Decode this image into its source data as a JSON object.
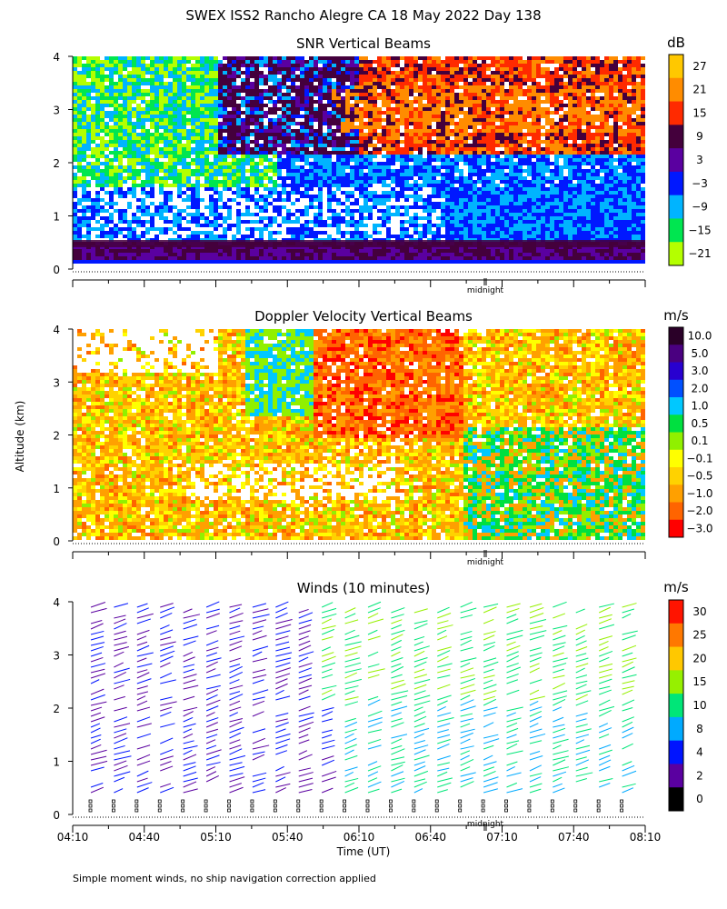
{
  "figure": {
    "title": "SWEX ISS2 Rancho Alegre CA  18 May 2022 Day 138",
    "ylabel": "Altitude (km)",
    "xlabel": "Time (UT)",
    "midnight_label": "midnight",
    "footnote": "Simple moment winds, no ship navigation correction applied"
  },
  "chart_data": [
    {
      "type": "heatmap",
      "title": "SNR Vertical Beams",
      "ylim": [
        0,
        4
      ],
      "yticks": [
        "0",
        "1",
        "2",
        "3",
        "4"
      ],
      "colorbar": {
        "unit": "dB",
        "labels": [
          "27",
          "21",
          "15",
          "9",
          "3",
          "−3",
          "−9",
          "−15",
          "−21"
        ],
        "colors": [
          "#ffc800",
          "#ff8c00",
          "#ff2a00",
          "#44003c",
          "#5a00a0",
          "#0018ff",
          "#00b4ff",
          "#00e650",
          "#b4ff00"
        ]
      }
    },
    {
      "type": "heatmap",
      "title": "Doppler Velocity Vertical Beams",
      "ylim": [
        0,
        4
      ],
      "yticks": [
        "0",
        "1",
        "2",
        "3",
        "4"
      ],
      "colorbar": {
        "unit": "m/s",
        "labels": [
          "10.0",
          "5.0",
          "3.0",
          "2.0",
          "1.0",
          "0.5",
          "0.1",
          "−0.1",
          "−0.5",
          "−1.0",
          "−2.0",
          "−3.0"
        ],
        "colors": [
          "#2a0028",
          "#4a0080",
          "#2800d0",
          "#0050ff",
          "#00c8ff",
          "#00e040",
          "#90f000",
          "#ffff00",
          "#ffd200",
          "#ffa000",
          "#ff6400",
          "#ff0000"
        ]
      }
    },
    {
      "type": "scatter",
      "title": "Winds (10 minutes)",
      "ylim": [
        0,
        4
      ],
      "yticks": [
        "0",
        "1",
        "2",
        "3",
        "4"
      ],
      "xticks": [
        "04:10",
        "04:40",
        "05:10",
        "05:40",
        "06:10",
        "06:40",
        "07:10",
        "07:40",
        "08:10"
      ],
      "colorbar": {
        "unit": "m/s",
        "labels": [
          "30",
          "25",
          "20",
          "15",
          "10",
          "8",
          "4",
          "2",
          "0"
        ],
        "colors": [
          "#ff1400",
          "#ff7800",
          "#ffc800",
          "#96f000",
          "#00e678",
          "#00aaff",
          "#0014ff",
          "#5a00a0",
          "#000000"
        ]
      }
    }
  ]
}
